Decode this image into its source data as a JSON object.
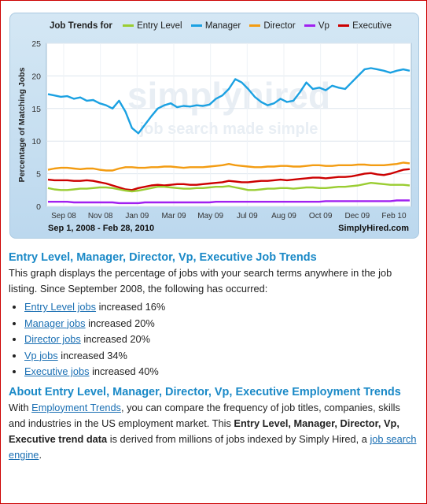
{
  "legend": {
    "lead": "Job Trends for",
    "items": [
      {
        "label": "Entry Level",
        "color": "#9acd32"
      },
      {
        "label": "Manager",
        "color": "#1ba1e2"
      },
      {
        "label": "Director",
        "color": "#f39c12"
      },
      {
        "label": "Vp",
        "color": "#a020f0"
      },
      {
        "label": "Executive",
        "color": "#cc0000"
      }
    ]
  },
  "chart_data": {
    "type": "line",
    "ylabel": "Percentage of Matching Jobs",
    "ylim": [
      0,
      25
    ],
    "yticks": [
      "0",
      "5",
      "10",
      "15",
      "20",
      "25"
    ],
    "xticks": [
      "Sep 08",
      "Nov 08",
      "Jan 09",
      "Mar 09",
      "May 09",
      "Jul 09",
      "Aug 09",
      "Oct 09",
      "Dec 09",
      "Feb 10"
    ],
    "grid": true,
    "watermark": [
      "simplyhired",
      "job search made simple"
    ],
    "series": [
      {
        "name": "Manager",
        "color": "#1ba1e2",
        "values": [
          17.2,
          17.0,
          16.8,
          16.9,
          16.5,
          16.7,
          16.2,
          16.3,
          15.8,
          15.5,
          15.0,
          16.2,
          14.5,
          12.0,
          11.2,
          12.5,
          13.8,
          15.0,
          15.5,
          15.8,
          15.2,
          15.4,
          15.3,
          15.5,
          15.4,
          15.6,
          16.5,
          17.0,
          18.0,
          19.5,
          19.0,
          18.0,
          16.8,
          16.0,
          15.5,
          15.8,
          16.5,
          16.0,
          16.2,
          17.5,
          19.0,
          18.0,
          18.2,
          17.8,
          18.5,
          18.2,
          18.0,
          19.0,
          20.0,
          21.0,
          21.2,
          21.0,
          20.8,
          20.5,
          20.8,
          21.0,
          20.8
        ]
      },
      {
        "name": "Director",
        "color": "#f39c12",
        "values": [
          5.6,
          5.8,
          5.9,
          5.9,
          5.8,
          5.7,
          5.8,
          5.8,
          5.6,
          5.5,
          5.5,
          5.8,
          6.0,
          6.0,
          5.9,
          5.9,
          6.0,
          6.0,
          6.1,
          6.1,
          6.0,
          5.9,
          6.0,
          6.0,
          6.0,
          6.1,
          6.2,
          6.3,
          6.5,
          6.3,
          6.2,
          6.1,
          6.0,
          6.0,
          6.1,
          6.1,
          6.2,
          6.2,
          6.1,
          6.1,
          6.2,
          6.3,
          6.3,
          6.2,
          6.2,
          6.3,
          6.3,
          6.3,
          6.4,
          6.4,
          6.3,
          6.3,
          6.3,
          6.4,
          6.5,
          6.7,
          6.6
        ]
      },
      {
        "name": "Executive",
        "color": "#cc0000",
        "values": [
          4.1,
          4.0,
          4.0,
          4.0,
          3.9,
          3.9,
          4.0,
          3.9,
          3.7,
          3.5,
          3.2,
          2.9,
          2.6,
          2.5,
          2.8,
          3.0,
          3.2,
          3.3,
          3.2,
          3.3,
          3.4,
          3.4,
          3.3,
          3.3,
          3.4,
          3.5,
          3.6,
          3.7,
          3.9,
          3.8,
          3.7,
          3.7,
          3.8,
          3.9,
          3.9,
          4.0,
          4.1,
          4.0,
          4.1,
          4.2,
          4.3,
          4.4,
          4.4,
          4.3,
          4.4,
          4.5,
          4.5,
          4.6,
          4.8,
          5.0,
          5.1,
          4.9,
          4.8,
          5.0,
          5.3,
          5.6,
          5.7
        ]
      },
      {
        "name": "Entry Level",
        "color": "#9acd32",
        "values": [
          2.8,
          2.6,
          2.5,
          2.5,
          2.6,
          2.7,
          2.7,
          2.8,
          2.9,
          2.9,
          2.8,
          2.6,
          2.4,
          2.3,
          2.4,
          2.6,
          2.8,
          3.0,
          3.0,
          2.9,
          2.8,
          2.7,
          2.7,
          2.8,
          2.8,
          2.9,
          3.0,
          3.0,
          3.1,
          2.9,
          2.7,
          2.5,
          2.5,
          2.6,
          2.7,
          2.7,
          2.8,
          2.8,
          2.7,
          2.8,
          2.9,
          2.9,
          2.8,
          2.8,
          2.9,
          3.0,
          3.0,
          3.1,
          3.2,
          3.4,
          3.6,
          3.5,
          3.4,
          3.3,
          3.3,
          3.3,
          3.2
        ]
      },
      {
        "name": "Vp",
        "color": "#a020f0",
        "values": [
          0.7,
          0.7,
          0.7,
          0.7,
          0.6,
          0.6,
          0.6,
          0.6,
          0.6,
          0.6,
          0.6,
          0.5,
          0.5,
          0.5,
          0.5,
          0.6,
          0.6,
          0.6,
          0.6,
          0.6,
          0.6,
          0.6,
          0.6,
          0.6,
          0.6,
          0.6,
          0.7,
          0.7,
          0.7,
          0.7,
          0.7,
          0.7,
          0.7,
          0.7,
          0.7,
          0.7,
          0.7,
          0.7,
          0.7,
          0.7,
          0.7,
          0.7,
          0.7,
          0.8,
          0.8,
          0.8,
          0.8,
          0.8,
          0.8,
          0.8,
          0.8,
          0.8,
          0.8,
          0.8,
          0.9,
          0.9,
          0.9
        ]
      }
    ]
  },
  "footer": {
    "date_range": "Sep 1, 2008 - Feb 28, 2010",
    "source": "SimplyHired.com"
  },
  "section1": {
    "title": "Entry Level, Manager, Director, Vp, Executive Job Trends",
    "intro": "This graph displays the percentage of jobs with your search terms anywhere in the job listing. Since September 2008, the following has occurred:",
    "items": [
      {
        "link": "Entry Level jobs",
        "text": " increased 16%"
      },
      {
        "link": "Manager jobs",
        "text": " increased 20%"
      },
      {
        "link": "Director jobs",
        "text": " increased 20%"
      },
      {
        "link": "Vp jobs",
        "text": " increased 34%"
      },
      {
        "link": "Executive jobs",
        "text": " increased 40%"
      }
    ]
  },
  "section2": {
    "title": "About Entry Level, Manager, Director, Vp, Executive Employment Trends",
    "p1": "With ",
    "link1": "Employment Trends",
    "p2": ", you can compare the frequency of job titles, companies, skills and industries in the US employment market. This ",
    "bold": "Entry Level, Manager, Director, Vp, Executive trend data",
    "p3": " is derived from millions of jobs indexed by Simply Hired, a ",
    "link2": "job search engine",
    "p4": "."
  }
}
